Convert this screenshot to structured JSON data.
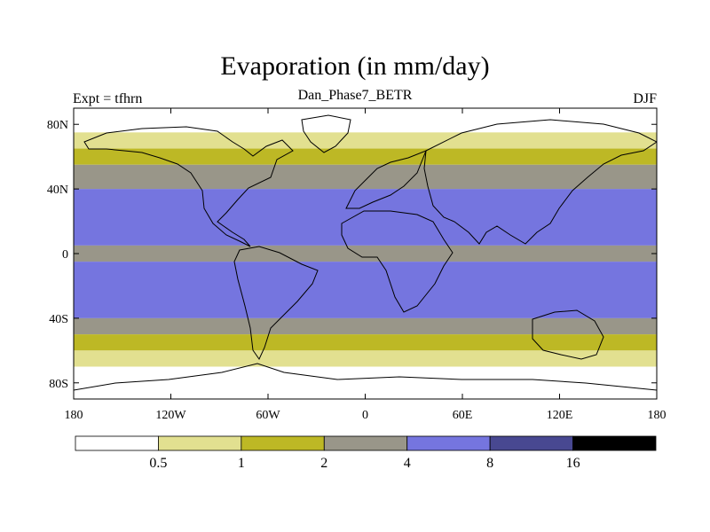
{
  "chart_data": {
    "type": "heatmap",
    "title": "Evaporation (in mm/day)",
    "subtitle": "Dan_Phase7_BETR",
    "left_label": "Expt = tfhrn",
    "right_label": "DJF",
    "x_ticks": [
      "180",
      "120W",
      "60W",
      "0",
      "60E",
      "120E",
      "180"
    ],
    "x_tick_values": [
      -180,
      -120,
      -60,
      0,
      60,
      120,
      180
    ],
    "y_ticks": [
      "80N",
      "40N",
      "0",
      "40S",
      "80S"
    ],
    "y_tick_values": [
      80,
      40,
      0,
      -40,
      -80
    ],
    "xlim": [
      -180,
      180
    ],
    "ylim": [
      -90,
      90
    ],
    "levels": [
      "0.5",
      "1",
      "2",
      "4",
      "8",
      "16"
    ],
    "level_values": [
      0.5,
      1,
      2,
      4,
      8,
      16
    ],
    "colors": [
      "#ffffff",
      "#e2e090",
      "#bdb825",
      "#999689",
      "#7575df",
      "#484891",
      "#000000"
    ],
    "zonal_bands": [
      {
        "lat_min": 75,
        "lat_max": 90,
        "class": 0,
        "value": 0.2
      },
      {
        "lat_min": 65,
        "lat_max": 75,
        "class": 1,
        "value": 0.7
      },
      {
        "lat_min": 55,
        "lat_max": 65,
        "class": 2,
        "value": 1.5
      },
      {
        "lat_min": 40,
        "lat_max": 55,
        "class": 3,
        "value": 3
      },
      {
        "lat_min": 5,
        "lat_max": 40,
        "class": 4,
        "value": 5
      },
      {
        "lat_min": -5,
        "lat_max": 5,
        "class": 3,
        "value": 3
      },
      {
        "lat_min": -40,
        "lat_max": -5,
        "class": 4,
        "value": 5
      },
      {
        "lat_min": -50,
        "lat_max": -40,
        "class": 3,
        "value": 3
      },
      {
        "lat_min": -60,
        "lat_max": -50,
        "class": 2,
        "value": 1.5
      },
      {
        "lat_min": -70,
        "lat_max": -60,
        "class": 1,
        "value": 0.7
      },
      {
        "lat_min": -90,
        "lat_max": -70,
        "class": 0,
        "value": 0.2
      }
    ]
  }
}
